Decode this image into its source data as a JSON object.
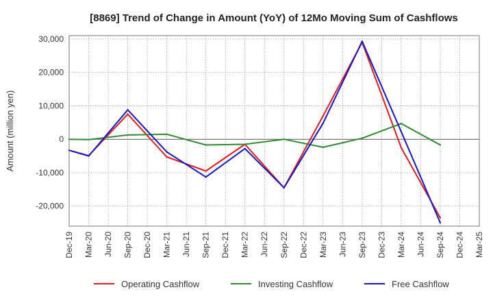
{
  "chart_data": {
    "type": "line",
    "title": "[8869]  Trend of Change in Amount (YoY) of 12Mo Moving Sum of Cashflows",
    "xlabel": "",
    "ylabel": "Amount (million yen)",
    "ylim": [
      -26000,
      31000
    ],
    "yticks": [
      30000,
      20000,
      10000,
      0,
      -10000,
      -20000
    ],
    "ytick_labels": [
      "30,000",
      "20,000",
      "10,000",
      "0",
      "-10,000",
      "-20,000"
    ],
    "categories": [
      "Dec-19",
      "Mar-20",
      "Jun-20",
      "Sep-20",
      "Dec-20",
      "Mar-21",
      "Jun-21",
      "Sep-21",
      "Dec-21",
      "Mar-22",
      "Jun-22",
      "Sep-22",
      "Dec-22",
      "Mar-23",
      "Jun-23",
      "Sep-23",
      "Dec-23",
      "Mar-24",
      "Jun-24",
      "Sep-24",
      "Dec-24",
      "Mar-25"
    ],
    "grid": true,
    "legend_position": "bottom",
    "series": [
      {
        "name": "Operating Cashflow",
        "color": "#e31a1c",
        "values": [
          -3300,
          -4900,
          null,
          7500,
          null,
          -5300,
          null,
          -9500,
          null,
          -1500,
          null,
          -14500,
          null,
          7000,
          null,
          29000,
          null,
          -2500,
          null,
          -23500,
          null,
          null
        ]
      },
      {
        "name": "Investing Cashflow",
        "color": "#2e8b2e",
        "values": [
          0,
          -100,
          null,
          1300,
          null,
          1500,
          null,
          -1700,
          null,
          -1500,
          null,
          0,
          null,
          -2400,
          null,
          300,
          null,
          4700,
          null,
          -1700,
          null,
          null
        ]
      },
      {
        "name": "Free Cashflow",
        "color": "#1414cc",
        "values": [
          -3300,
          -5000,
          null,
          8800,
          null,
          -3800,
          null,
          -11300,
          null,
          -2800,
          null,
          -14500,
          null,
          4800,
          null,
          29300,
          null,
          2300,
          null,
          -25000,
          null,
          null
        ]
      }
    ]
  }
}
